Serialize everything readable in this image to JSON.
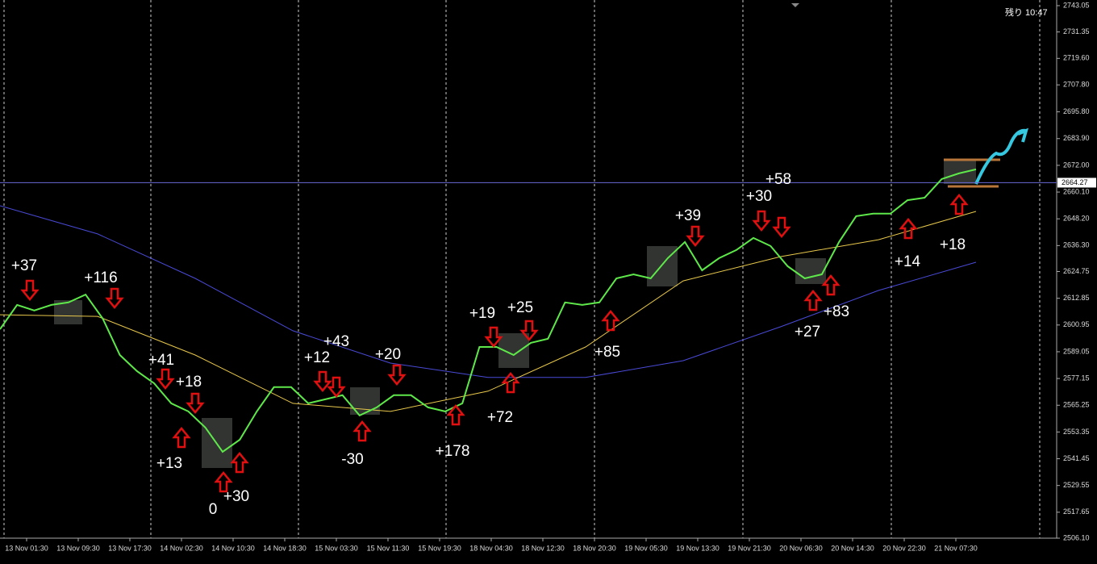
{
  "chart_data": {
    "type": "line",
    "status_text": "残り 10:47",
    "current_price": {
      "value": 2664.27,
      "label": "2664.27"
    },
    "ylim": [
      2506.1,
      2743.05
    ],
    "yticks": [
      2743.05,
      {
        "value": 2731.35,
        "label": "2731.35"
      },
      {
        "value": 2719.6,
        "label": "2719.60"
      },
      {
        "value": 2707.8,
        "label": "2707.80"
      },
      {
        "value": 2695.8,
        "label": "2695.80"
      },
      {
        "value": 2683.9,
        "label": "2683.90"
      },
      {
        "value": 2672,
        "label": "2672.00"
      },
      {
        "value": 2660.1,
        "label": "2660.10"
      },
      {
        "value": 2648.2,
        "label": "2648.20"
      },
      {
        "value": 2636.3,
        "label": "2636.30"
      },
      2624.75,
      2612.85,
      2600.95,
      2589.05,
      2577.15,
      2565.25,
      2553.35,
      2541.45,
      2529.55,
      2517.65,
      {
        "value": 2506.1,
        "label": "2506.10"
      }
    ],
    "xtick_labels": [
      "13 Nov 01:30",
      "13 Nov 09:30",
      "13 Nov 17:30",
      "14 Nov 02:30",
      "14 Nov 10:30",
      "14 Nov 18:30",
      "15 Nov 03:30",
      "15 Nov 11:30",
      "15 Nov 19:30",
      "18 Nov 04:30",
      "18 Nov 12:30",
      "18 Nov 20:30",
      "19 Nov 05:30",
      "19 Nov 13:30",
      "19 Nov 21:30",
      "20 Nov 06:30",
      "20 Nov 14:30",
      "20 Nov 22:30",
      "21 Nov 07:30"
    ],
    "series": [
      {
        "name": "price",
        "color": "#5ee84a",
        "values": [
          2599.1,
          2609.9,
          2607.4,
          2609.9,
          2611.0,
          2614.5,
          2603.8,
          2587.6,
          2580.4,
          2575.0,
          2566.1,
          2562.5,
          2555.3,
          2544.5,
          2549.9,
          2562.5,
          2573.3,
          2573.3,
          2566.1,
          2567.9,
          2569.7,
          2560.7,
          2564.3,
          2569.7,
          2569.7,
          2564.3,
          2562.5,
          2566.1,
          2591.2,
          2591.2,
          2587.6,
          2593.0,
          2594.8,
          2611.0,
          2609.9,
          2611.0,
          2621.7,
          2623.5,
          2621.7,
          2630.7,
          2637.9,
          2625.3,
          2630.7,
          2634.3,
          2639.7,
          2636.1,
          2627.1,
          2621.7,
          2623.5,
          2637.9,
          2649.4,
          2650.5,
          2650.5,
          2656.5,
          2657.6,
          2665.9,
          2668.4,
          2670.2
        ]
      },
      {
        "name": "ma-fast",
        "color": "#e8c84a",
        "values": [
          2605.5,
          2604.8,
          2587.6,
          2566.1,
          2562.5,
          2571.5,
          2591.2,
          2620.6,
          2631.4,
          2638.9,
          2651.5
        ]
      },
      {
        "name": "ma-slow",
        "color": "#4a4ad8",
        "values": [
          2654.0,
          2641.5,
          2621.7,
          2598.4,
          2584.0,
          2577.6,
          2577.6,
          2585.1,
          2600.2,
          2616.3,
          2628.9
        ]
      }
    ],
    "annotations": [
      "+37",
      "+116",
      "+41",
      "+18",
      "+13",
      "0",
      "+30",
      "+12",
      "+43",
      "+20",
      "-30",
      "+178",
      "+19",
      "+25",
      "+72",
      "+85",
      "+39",
      "+30",
      "+58",
      "+27",
      "+83",
      "+14",
      "+18"
    ]
  }
}
